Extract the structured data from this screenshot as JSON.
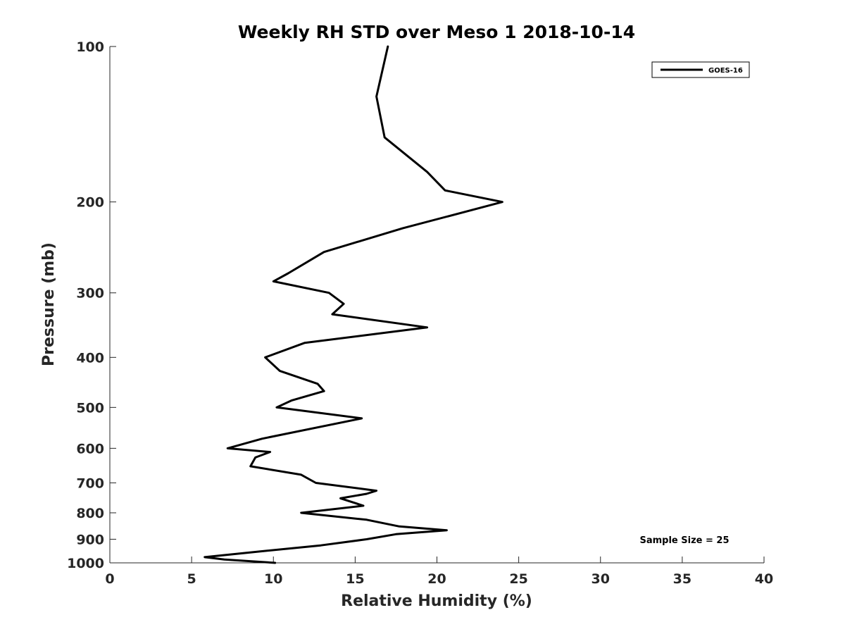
{
  "chart_data": {
    "type": "line",
    "title": "Weekly RH STD over Meso 1 2018-10-14",
    "xlabel": "Relative Humidity (%)",
    "ylabel": "Pressure (mb)",
    "xlim": [
      0,
      40
    ],
    "ylim": [
      100,
      1000
    ],
    "yscale": "log",
    "y_inverted": true,
    "xticks": [
      0,
      5,
      10,
      15,
      20,
      25,
      30,
      35,
      40
    ],
    "yticks": [
      100,
      200,
      300,
      400,
      500,
      600,
      700,
      800,
      900,
      1000
    ],
    "grid": false,
    "legend": {
      "location": "top-right",
      "entries": [
        "GOES-16"
      ]
    },
    "annotation": "Sample Size = 25",
    "series": [
      {
        "name": "GOES-16",
        "color": "#000000",
        "points": [
          [
            17.0,
            100
          ],
          [
            16.3,
            125
          ],
          [
            16.8,
            150
          ],
          [
            19.4,
            175
          ],
          [
            20.5,
            190
          ],
          [
            24.0,
            200
          ],
          [
            17.9,
            225
          ],
          [
            13.1,
            250
          ],
          [
            10.9,
            275
          ],
          [
            10.0,
            285
          ],
          [
            13.4,
            300
          ],
          [
            14.3,
            315
          ],
          [
            13.6,
            330
          ],
          [
            19.4,
            350
          ],
          [
            11.9,
            375
          ],
          [
            9.5,
            400
          ],
          [
            10.4,
            425
          ],
          [
            12.7,
            450
          ],
          [
            13.1,
            465
          ],
          [
            11.1,
            485
          ],
          [
            10.2,
            500
          ],
          [
            15.4,
            525
          ],
          [
            9.3,
            575
          ],
          [
            7.2,
            600
          ],
          [
            9.8,
            610
          ],
          [
            8.9,
            625
          ],
          [
            8.6,
            650
          ],
          [
            11.7,
            675
          ],
          [
            12.6,
            700
          ],
          [
            16.3,
            725
          ],
          [
            15.7,
            735
          ],
          [
            14.1,
            750
          ],
          [
            15.5,
            775
          ],
          [
            11.7,
            800
          ],
          [
            15.7,
            825
          ],
          [
            17.7,
            850
          ],
          [
            20.6,
            865
          ],
          [
            17.5,
            880
          ],
          [
            15.7,
            900
          ],
          [
            12.9,
            925
          ],
          [
            9.2,
            950
          ],
          [
            5.8,
            975
          ],
          [
            7.0,
            985
          ],
          [
            10.1,
            1000
          ]
        ]
      }
    ]
  }
}
